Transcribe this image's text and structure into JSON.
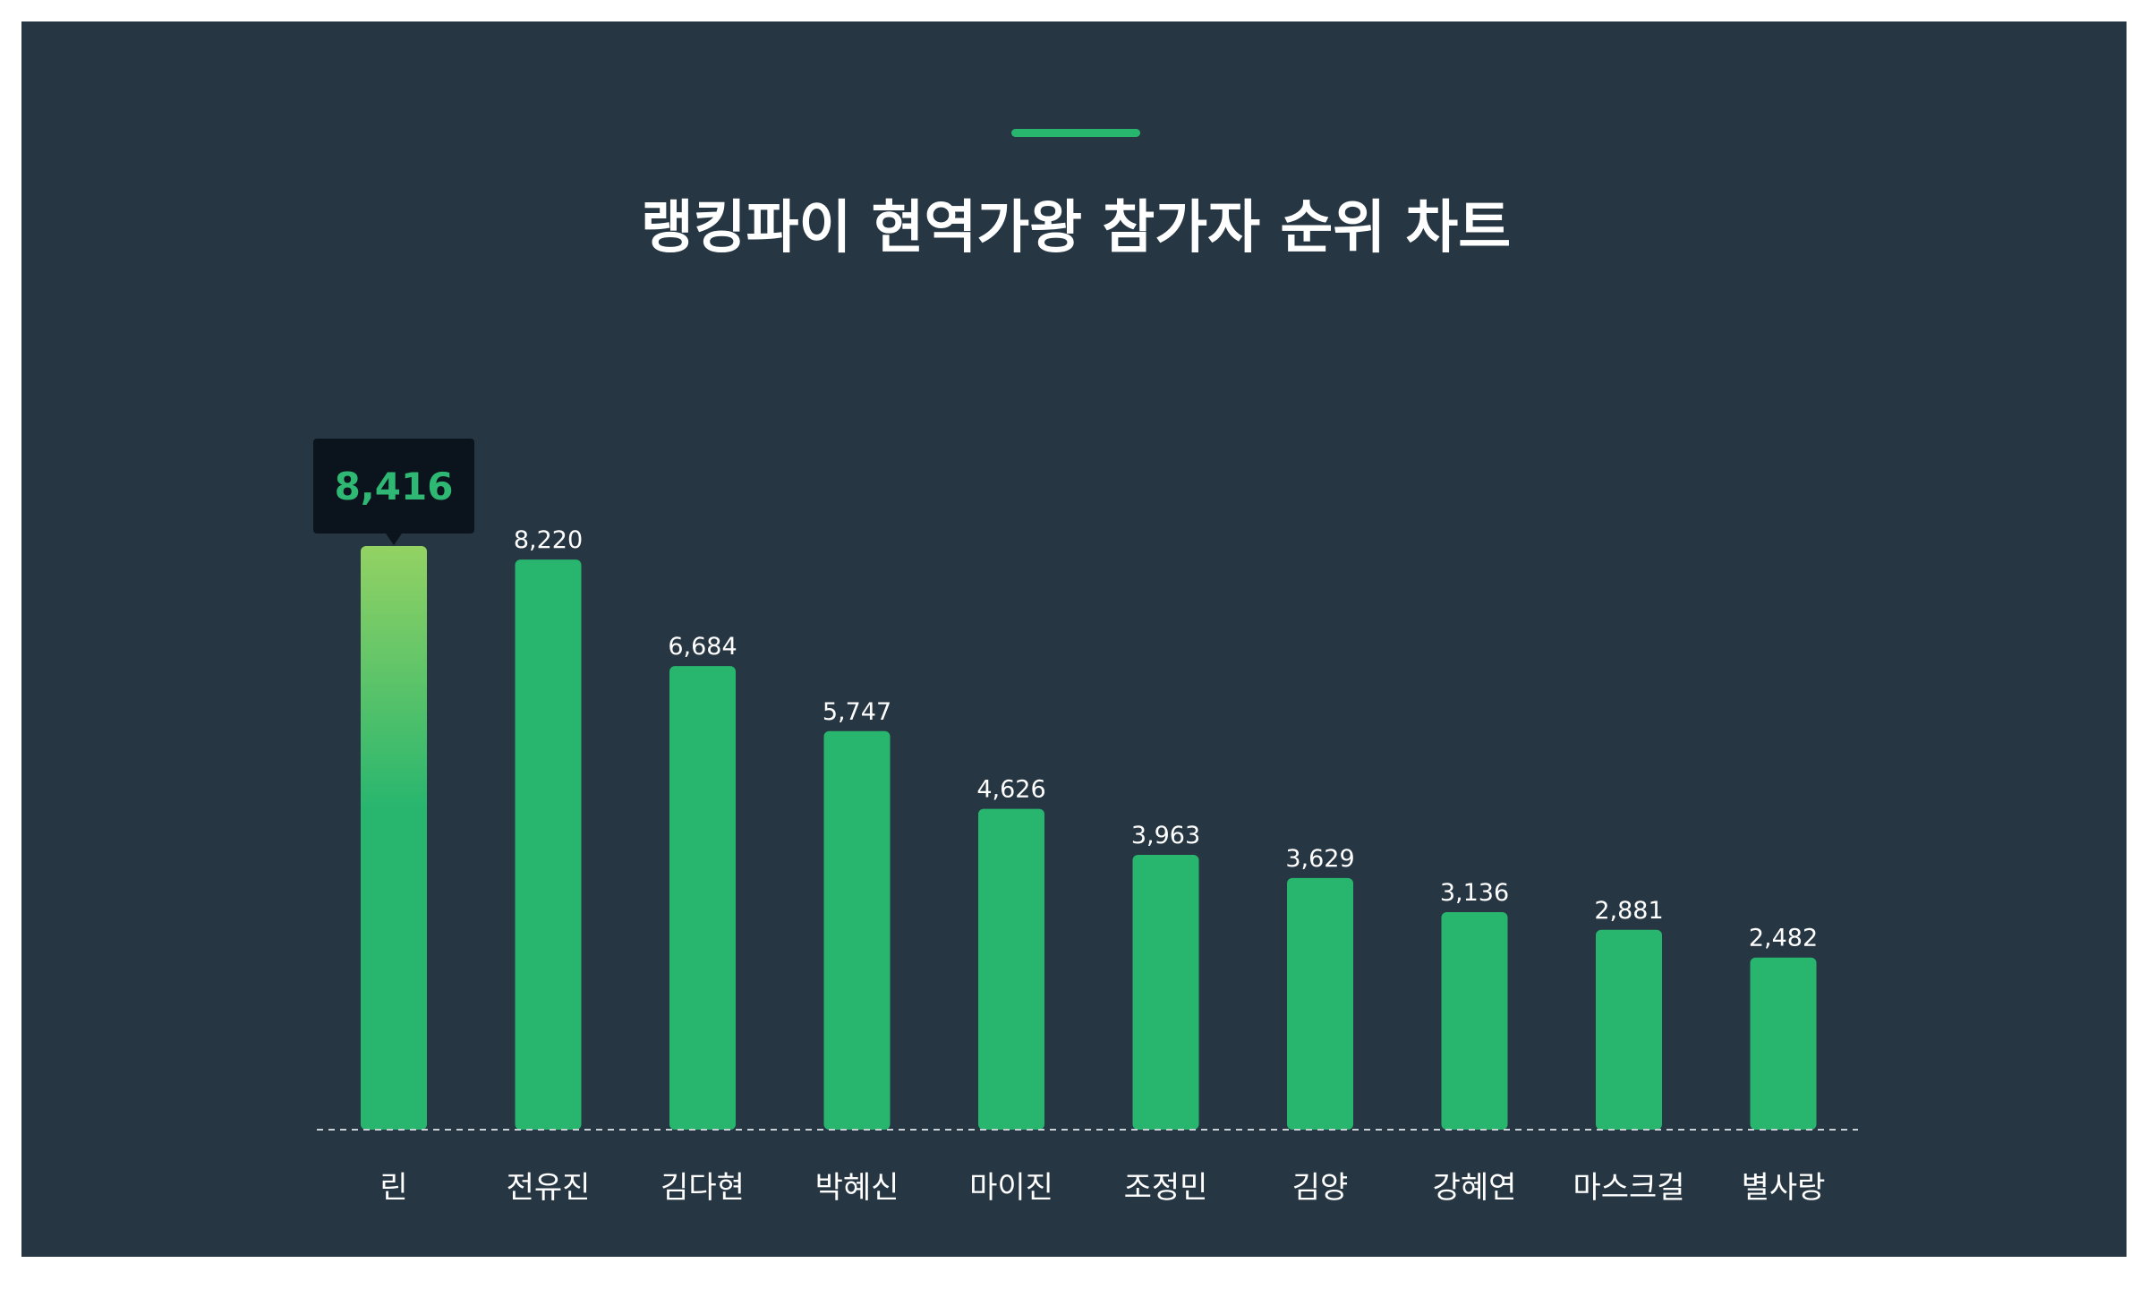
{
  "chart_data": {
    "type": "bar",
    "title": "랭킹파이 현역가왕 참가자 순위 차트",
    "categories": [
      "린",
      "전유진",
      "김다현",
      "박혜신",
      "마이진",
      "조정민",
      "김양",
      "강혜연",
      "마스크걸",
      "별사랑"
    ],
    "values": [
      8416,
      8220,
      6684,
      5747,
      4626,
      3963,
      3629,
      3136,
      2881,
      2482
    ],
    "value_labels": [
      "8,416",
      "8,220",
      "6,684",
      "5,747",
      "4,626",
      "3,963",
      "3,629",
      "3,136",
      "2,881",
      "2,482"
    ],
    "highlight_index": 0,
    "highlight_label": "8,416",
    "ylim": [
      0,
      8416
    ],
    "grid": false,
    "colors": {
      "background": "#263642",
      "bar": "#28b66f",
      "highlight_top": "#93d263",
      "accent_line": "#28b66f",
      "tooltip_bg": "#0b141c",
      "tooltip_text": "#2fb873",
      "text": "#ffffff",
      "baseline": "#c9d1d6"
    }
  }
}
